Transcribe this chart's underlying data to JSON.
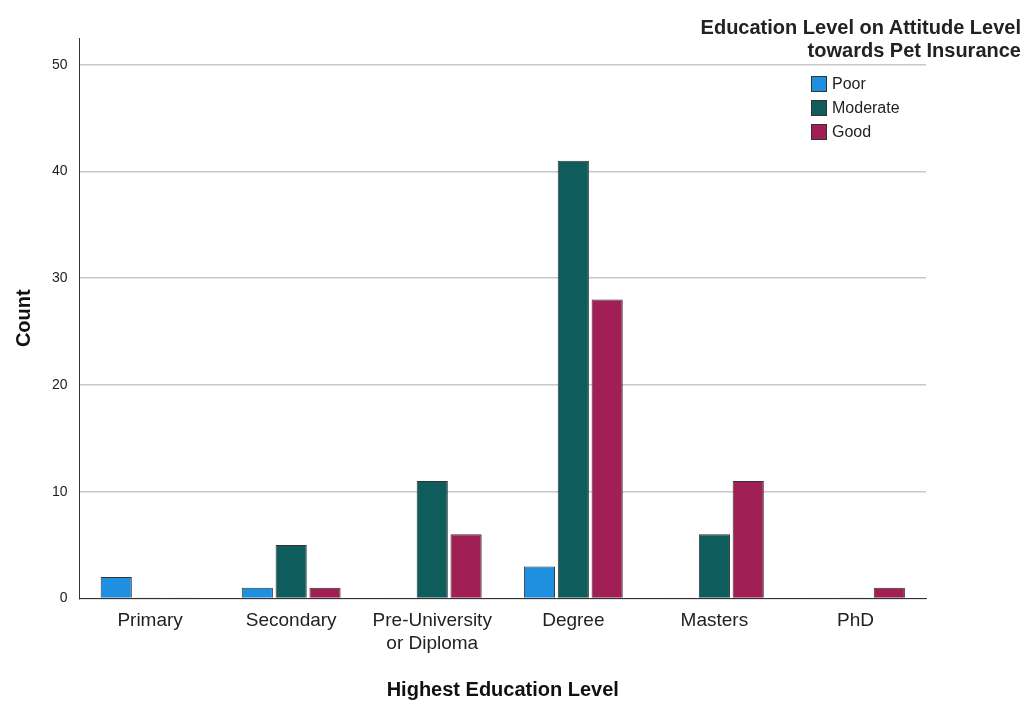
{
  "chart_data": {
    "type": "bar",
    "xlabel": "Highest Education Level",
    "ylabel": "Count",
    "legend_title": "Education Level on Attitude Level towards Pet Insurance",
    "categories": [
      "Primary",
      "Secondary",
      "Pre-University or Diploma",
      "Degree",
      "Masters",
      "PhD"
    ],
    "series": [
      {
        "name": "Poor",
        "color": "#1f8fe0",
        "values": [
          2,
          1,
          0,
          3,
          0,
          0
        ]
      },
      {
        "name": "Moderate",
        "color": "#0e5c5c",
        "values": [
          0,
          5,
          11,
          41,
          6,
          0
        ]
      },
      {
        "name": "Good",
        "color": "#a01f55",
        "values": [
          0,
          1,
          6,
          28,
          11,
          1
        ]
      }
    ],
    "ylim": [
      0,
      52.5
    ],
    "yticks": [
      0,
      10,
      20,
      30,
      40,
      50
    ],
    "grid": "y",
    "legend": "top right"
  }
}
